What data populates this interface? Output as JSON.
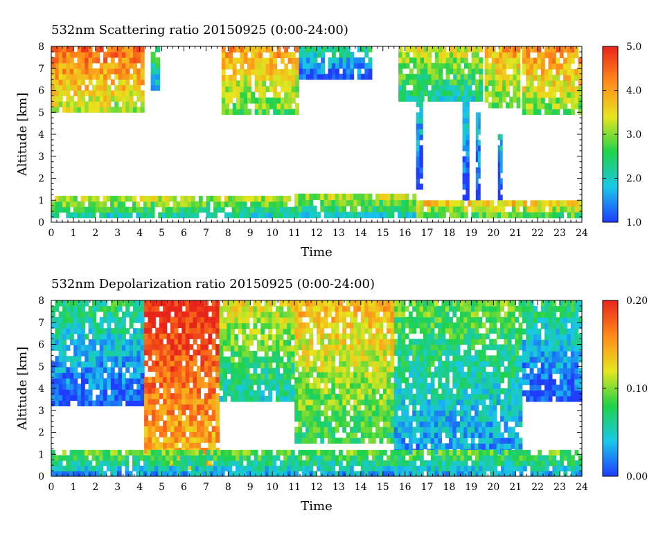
{
  "chart_data": [
    {
      "type": "heatmap",
      "title": "532nm Scattering ratio  20150925 (0:00-24:00)",
      "xlabel": "Time",
      "ylabel": "Altitude [km]",
      "xlim": [
        0,
        24
      ],
      "ylim": [
        0,
        8
      ],
      "x_ticks": [
        "0",
        "1",
        "2",
        "3",
        "4",
        "5",
        "6",
        "7",
        "8",
        "9",
        "10",
        "11",
        "12",
        "13",
        "14",
        "15",
        "16",
        "17",
        "18",
        "19",
        "20",
        "21",
        "22",
        "23",
        "24"
      ],
      "y_ticks": [
        "0",
        "1",
        "2",
        "3",
        "4",
        "5",
        "6",
        "7",
        "8"
      ],
      "colorbar": {
        "min": 1.0,
        "max": 5.0,
        "tick_labels": [
          "1.0",
          "2.0",
          "3.0",
          "4.0",
          "5.0"
        ],
        "tick_values": [
          1.0,
          2.0,
          3.0,
          4.0,
          5.0
        ],
        "colors": [
          "#1f3cff",
          "#19c8e8",
          "#1fd24a",
          "#e7e61e",
          "#ff8a1a",
          "#e8251a"
        ]
      },
      "features": [
        {
          "t0": 0.0,
          "t1": 4.2,
          "z0": 5.0,
          "z1": 8.0,
          "level": 0.72
        },
        {
          "t0": 4.5,
          "t1": 4.9,
          "z0": 6.0,
          "z1": 8.0,
          "level": 0.3
        },
        {
          "t0": 7.7,
          "t1": 11.2,
          "z0": 4.9,
          "z1": 8.0,
          "level": 0.62
        },
        {
          "t0": 11.2,
          "t1": 14.5,
          "z0": 6.5,
          "z1": 8.0,
          "level": 0.2
        },
        {
          "t0": 15.7,
          "t1": 19.5,
          "z0": 5.5,
          "z1": 8.0,
          "level": 0.45
        },
        {
          "t0": 19.6,
          "t1": 21.2,
          "z0": 5.2,
          "z1": 8.0,
          "level": 0.6
        },
        {
          "t0": 21.3,
          "t1": 24.0,
          "z0": 4.9,
          "z1": 8.0,
          "level": 0.65
        },
        {
          "t0": 16.5,
          "t1": 16.8,
          "z0": 1.5,
          "z1": 5.5,
          "level": 0.12
        },
        {
          "t0": 18.6,
          "t1": 18.9,
          "z0": 1.0,
          "z1": 5.5,
          "level": 0.12
        },
        {
          "t0": 19.2,
          "t1": 19.4,
          "z0": 1.0,
          "z1": 5.0,
          "level": 0.1
        },
        {
          "t0": 20.2,
          "t1": 20.4,
          "z0": 1.0,
          "z1": 4.0,
          "level": 0.1
        },
        {
          "t0": 0.0,
          "t1": 11.0,
          "z0": 0.2,
          "z1": 1.2,
          "level": 0.45
        },
        {
          "t0": 11.0,
          "t1": 16.5,
          "z0": 0.2,
          "z1": 1.3,
          "level": 0.45
        },
        {
          "t0": 16.5,
          "t1": 24.0,
          "z0": 0.2,
          "z1": 1.0,
          "level": 0.6
        }
      ]
    },
    {
      "type": "heatmap",
      "title": "532nm Depolarization ratio  20150925 (0:00-24:00)",
      "xlabel": "Time",
      "ylabel": "Altitude [km]",
      "xlim": [
        0,
        24
      ],
      "ylim": [
        0,
        8
      ],
      "x_ticks": [
        "0",
        "1",
        "2",
        "3",
        "4",
        "5",
        "6",
        "7",
        "8",
        "9",
        "10",
        "11",
        "12",
        "13",
        "14",
        "15",
        "16",
        "17",
        "18",
        "19",
        "20",
        "21",
        "22",
        "23",
        "24"
      ],
      "y_ticks": [
        "0",
        "1",
        "2",
        "3",
        "4",
        "5",
        "6",
        "7",
        "8"
      ],
      "colorbar": {
        "min": 0.0,
        "max": 0.2,
        "tick_labels": [
          "0.00",
          "0.10",
          "0.20"
        ],
        "tick_values": [
          0.0,
          0.1,
          0.2
        ],
        "colors": [
          "#1f3cff",
          "#19c8e8",
          "#1fd24a",
          "#e7e61e",
          "#ff8a1a",
          "#e8251a"
        ]
      },
      "features": [
        {
          "t0": 0.0,
          "t1": 4.2,
          "z0": 3.2,
          "z1": 8.0,
          "level": 0.2
        },
        {
          "t0": 4.2,
          "t1": 7.6,
          "z0": 0.3,
          "z1": 8.0,
          "level": 0.85
        },
        {
          "t0": 7.6,
          "t1": 11.0,
          "z0": 3.4,
          "z1": 8.0,
          "level": 0.45
        },
        {
          "t0": 11.0,
          "t1": 15.5,
          "z0": 1.5,
          "z1": 8.0,
          "level": 0.55
        },
        {
          "t0": 15.5,
          "t1": 21.3,
          "z0": 1.0,
          "z1": 8.0,
          "level": 0.3
        },
        {
          "t0": 21.3,
          "t1": 24.0,
          "z0": 3.4,
          "z1": 8.0,
          "level": 0.2
        },
        {
          "t0": 0.0,
          "t1": 24.0,
          "z0": 0.0,
          "z1": 1.2,
          "level": 0.35
        }
      ]
    }
  ]
}
